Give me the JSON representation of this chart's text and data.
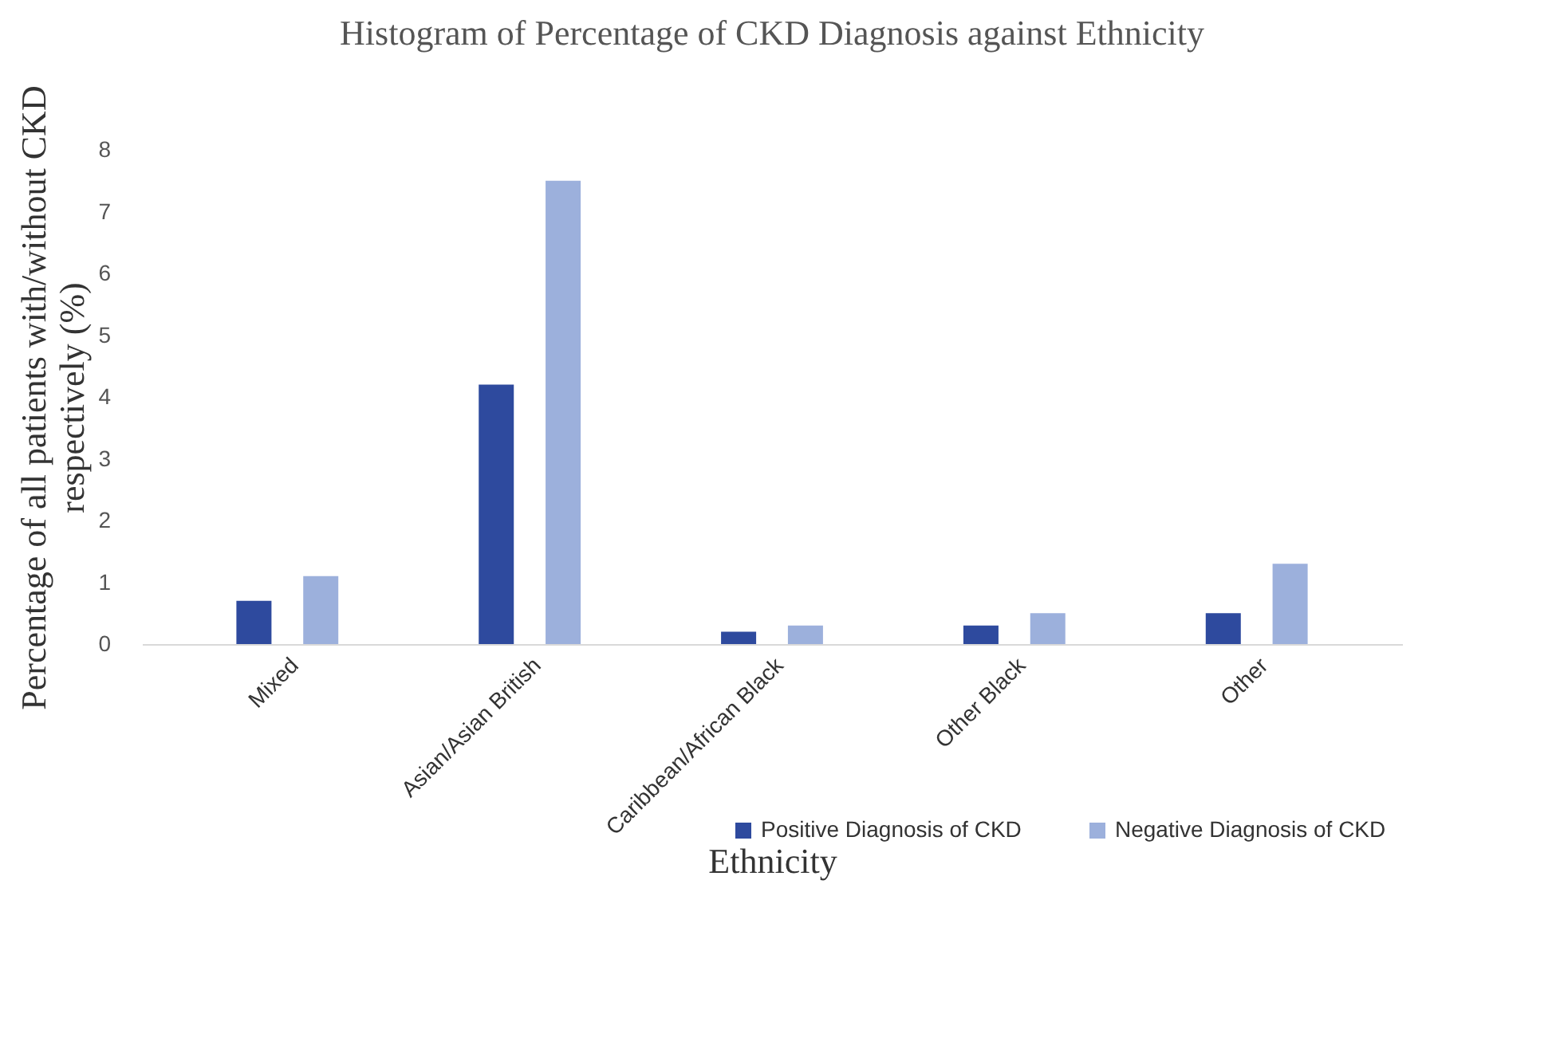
{
  "chart_data": {
    "type": "bar",
    "title": "Histogram of Percentage of CKD Diagnosis against Ethnicity",
    "xlabel": "Ethnicity",
    "ylabel": "Percentage of all patients with/without CKD respectively (%)",
    "categories": [
      "Mixed",
      "Asian/Asian British",
      "Caribbean/African Black",
      "Other Black",
      "Other"
    ],
    "series": [
      {
        "name": "Positive Diagnosis of CKD",
        "color": "#2e4a9e",
        "values": [
          0.7,
          4.2,
          0.2,
          0.3,
          0.5
        ]
      },
      {
        "name": "Negative Diagnosis of CKD",
        "color": "#9cb0dc",
        "values": [
          1.1,
          7.5,
          0.3,
          0.5,
          1.3
        ]
      }
    ],
    "ylim": [
      0,
      8
    ],
    "yticks": [
      0,
      1,
      2,
      3,
      4,
      5,
      6,
      7,
      8
    ],
    "grid": false,
    "legend": "bottom right"
  }
}
